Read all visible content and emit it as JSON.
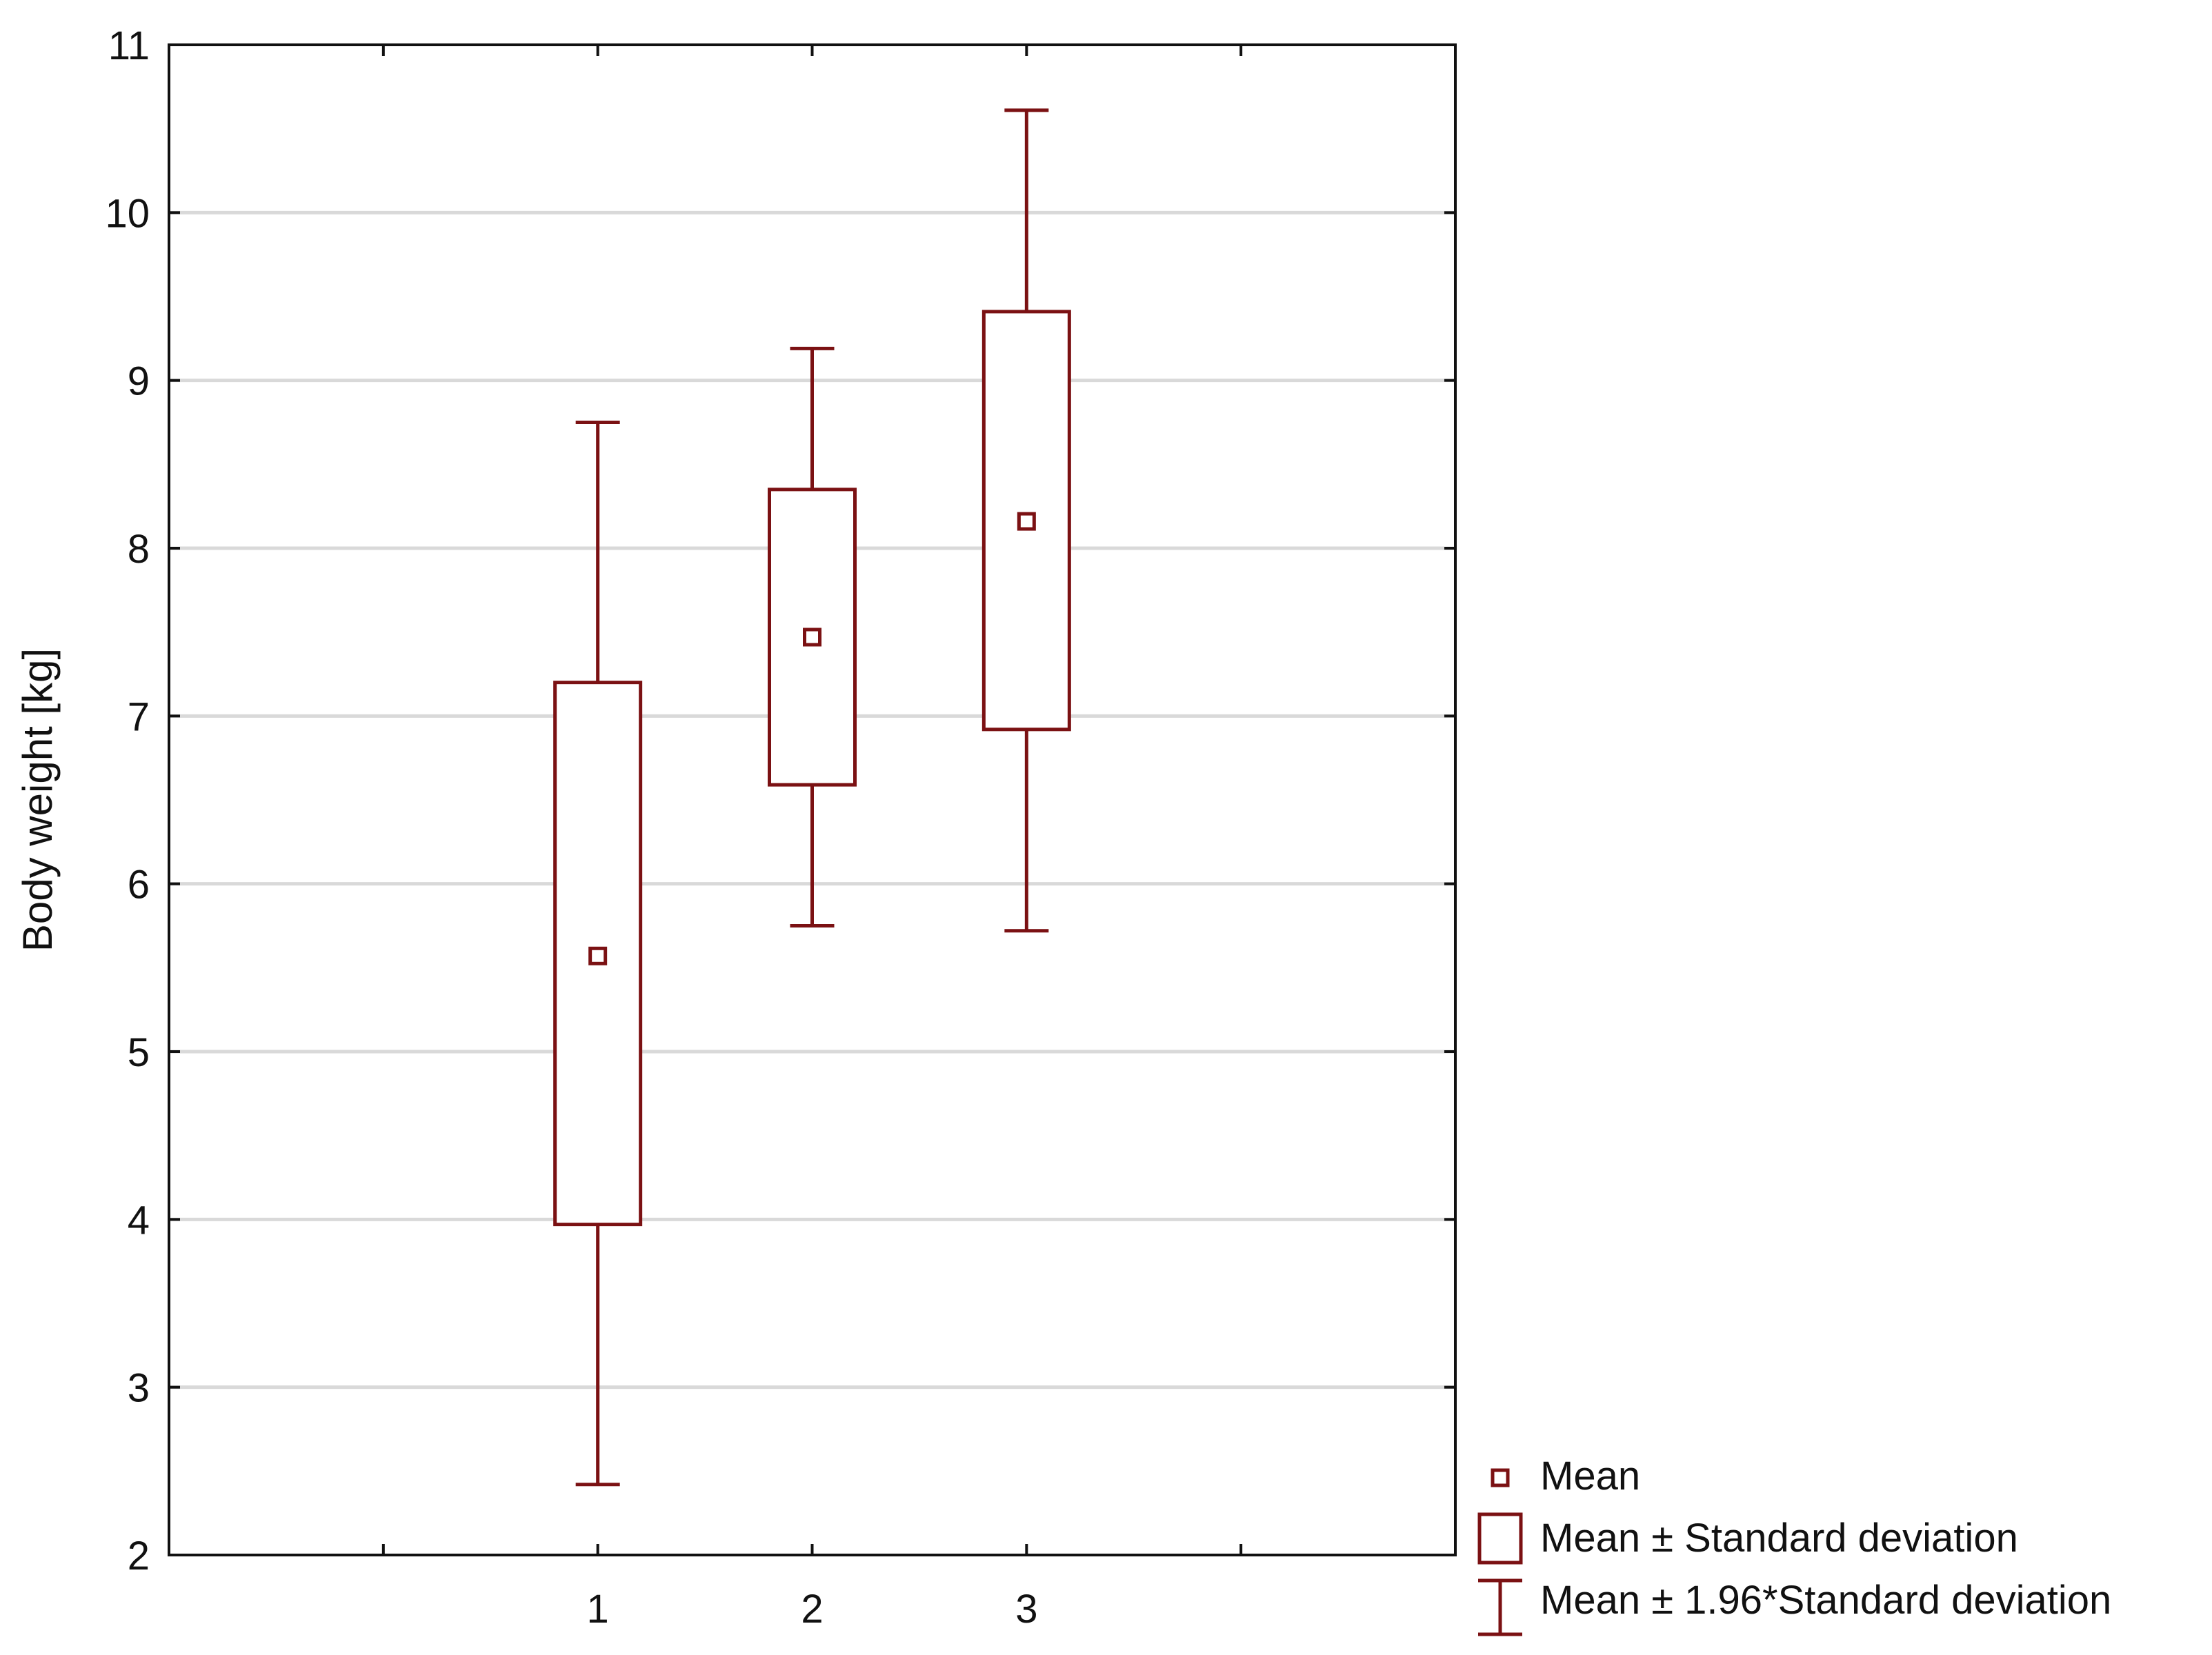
{
  "chart_data": {
    "type": "box",
    "ylabel": "Body weight [kg]",
    "xlabel": "",
    "ylim": [
      2,
      11
    ],
    "yticks": [
      "2",
      "3",
      "4",
      "5",
      "6",
      "7",
      "8",
      "9",
      "10",
      "11"
    ],
    "xlim": [
      -1,
      5
    ],
    "categories": [
      "1",
      "2",
      "3"
    ],
    "series": [
      {
        "category": "1",
        "mean": 5.57,
        "sd_low": 3.97,
        "sd_high": 7.2,
        "ci_low": 2.42,
        "ci_high": 8.75
      },
      {
        "category": "2",
        "mean": 7.47,
        "sd_low": 6.59,
        "sd_high": 8.35,
        "ci_low": 5.75,
        "ci_high": 9.19
      },
      {
        "category": "3",
        "mean": 8.16,
        "sd_low": 6.92,
        "sd_high": 9.41,
        "ci_low": 5.72,
        "ci_high": 10.61
      }
    ],
    "legend": {
      "position": "bottom-right-outside",
      "items": [
        {
          "label": "Mean",
          "symbol": "small-square"
        },
        {
          "label": "Mean ± Standard deviation",
          "symbol": "box"
        },
        {
          "label": "Mean ± 1.96*Standard deviation",
          "symbol": "whisker"
        }
      ]
    },
    "grid": "horizontal",
    "colors": {
      "series": "#7b1113",
      "grid": "#d9d9d9",
      "axis": "#111111"
    }
  }
}
